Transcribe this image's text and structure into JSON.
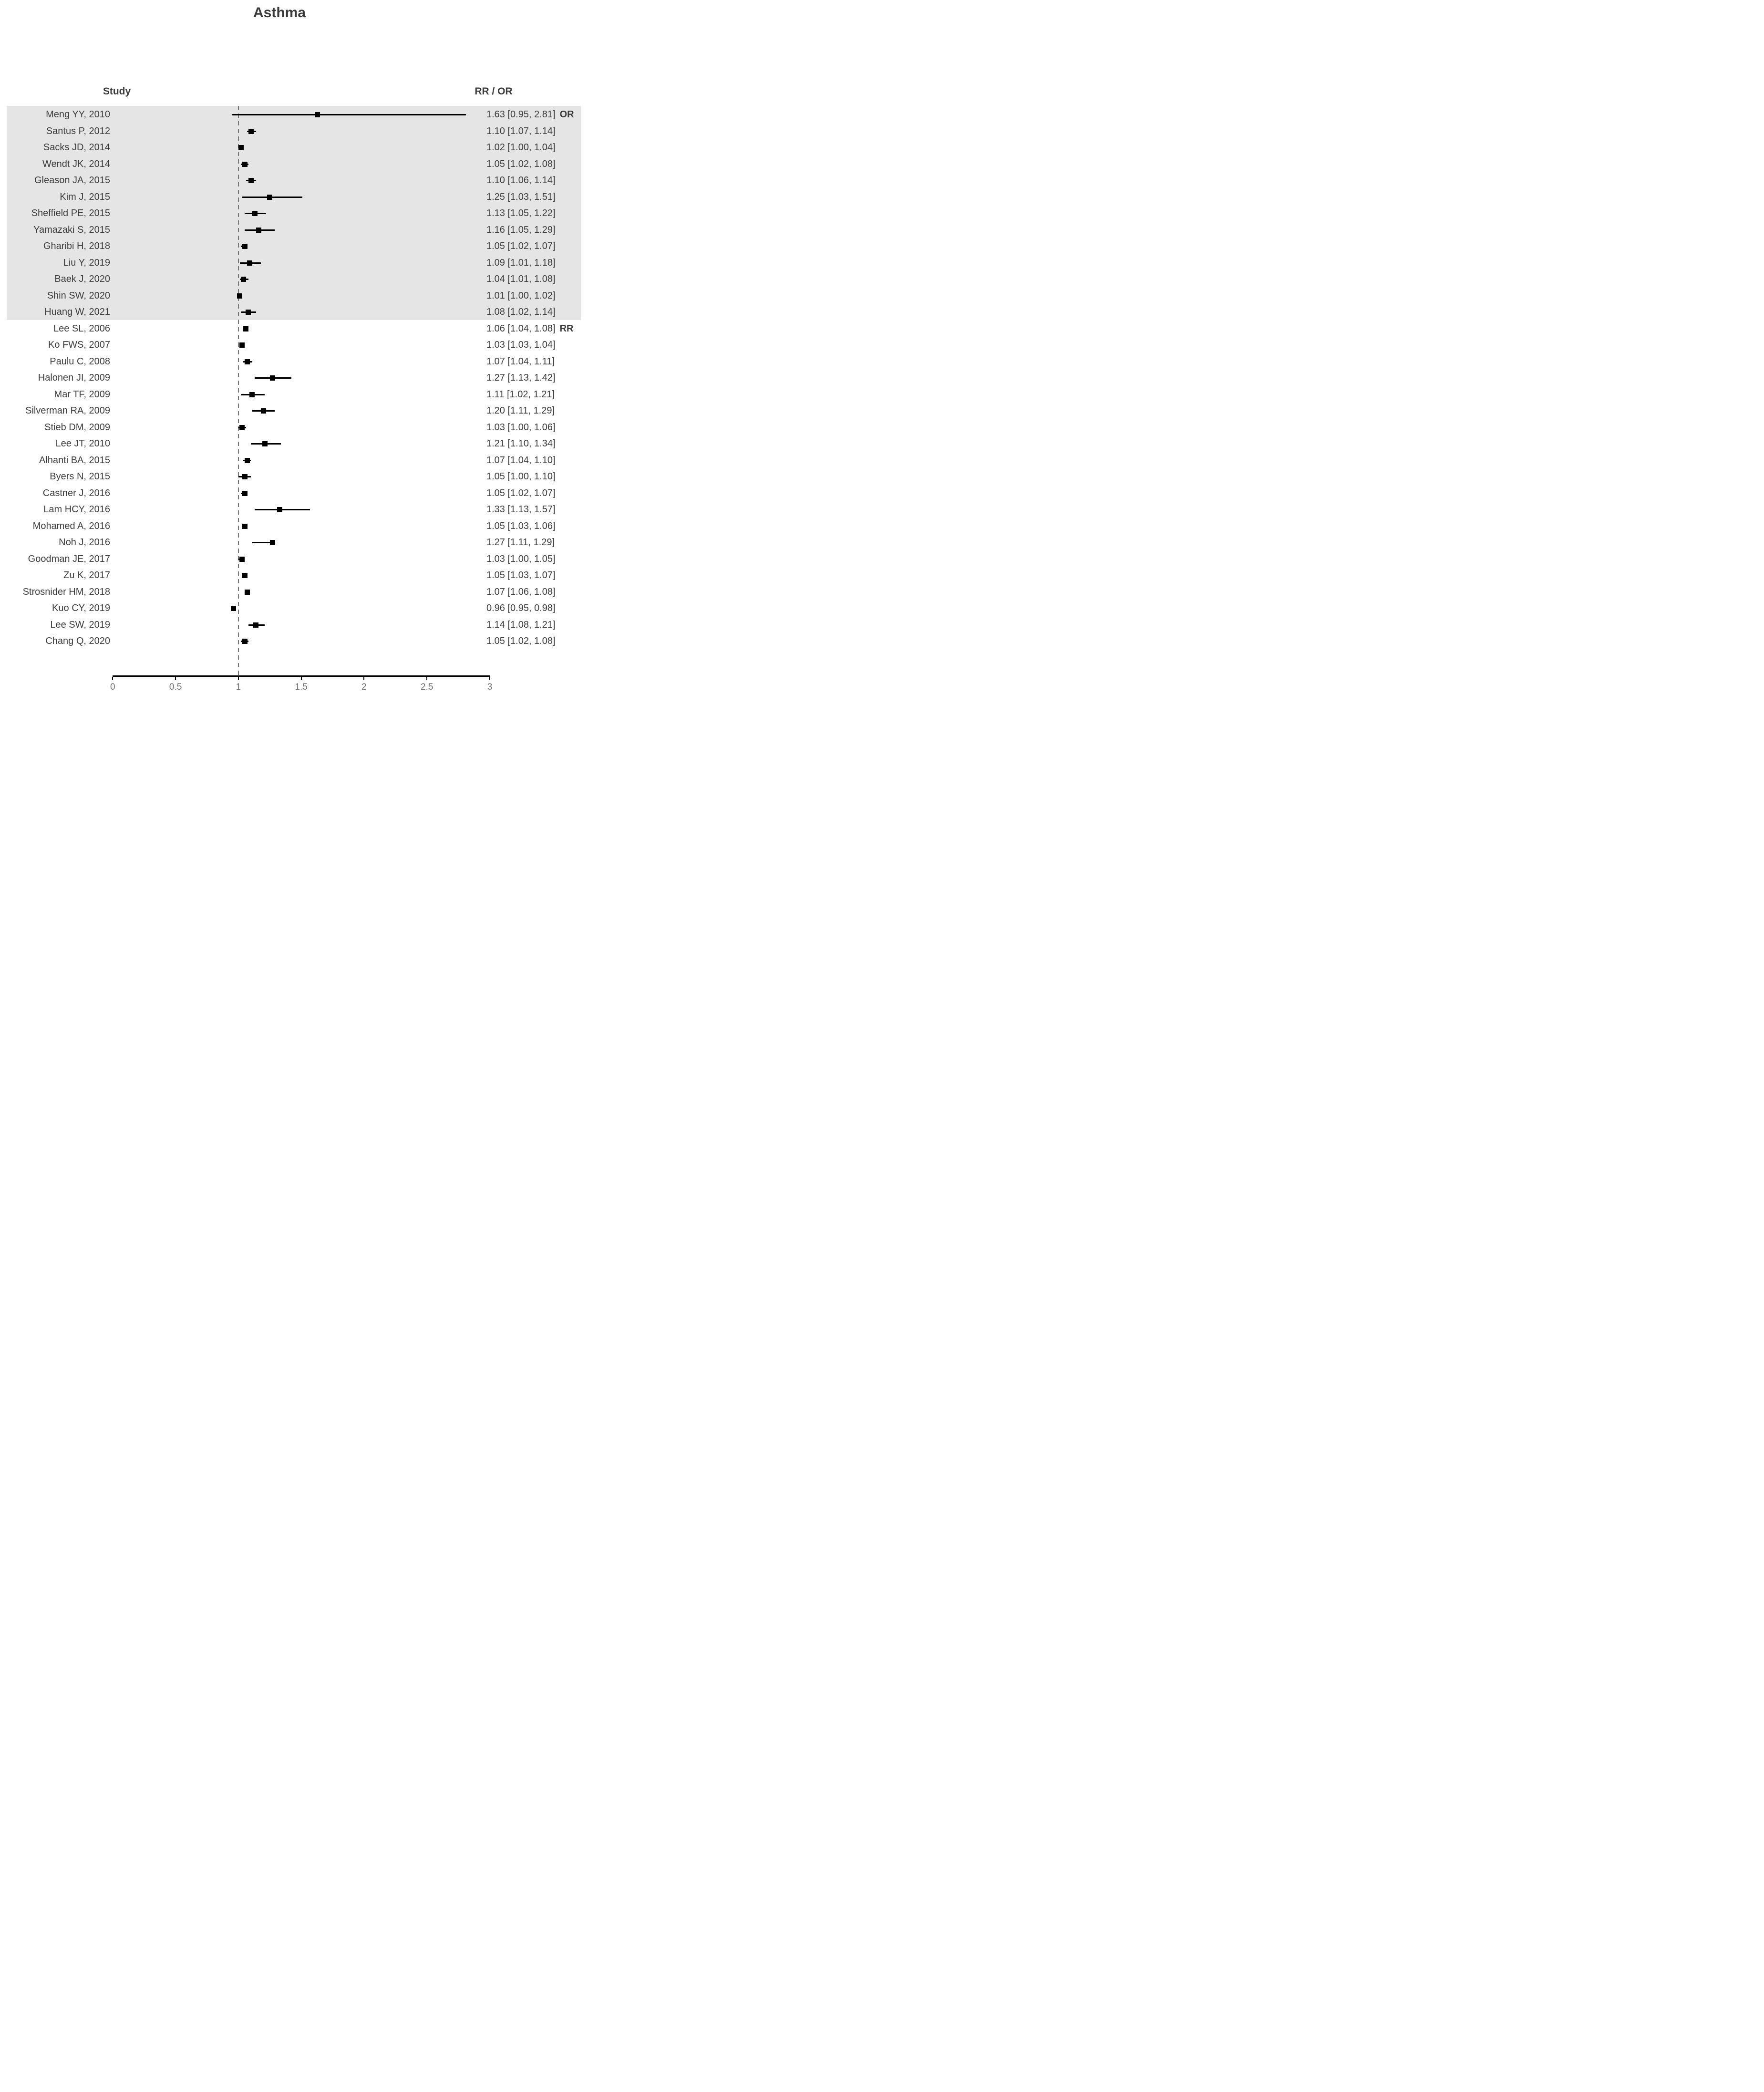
{
  "title": "Asthma",
  "headers": {
    "study": "Study",
    "effect": "RR / OR"
  },
  "axis": {
    "tick_labels": [
      "0",
      "0.5",
      "1",
      "1.5",
      "2",
      "2.5",
      "3"
    ],
    "tick_values": [
      0,
      0.5,
      1,
      1.5,
      2,
      2.5,
      3
    ],
    "min": 0,
    "max": 3,
    "reference_value": 1
  },
  "colors": {
    "group_band": "#e5e5e5",
    "marker": "#000000",
    "text": "#3b3b3b",
    "axis": "#000000",
    "reference_line": "#767676",
    "tick_label": "#6f6f6f"
  },
  "chart_data": {
    "type": "scatter",
    "variant": "forest-plot",
    "title": "Asthma",
    "xlabel": "",
    "ylabel": "",
    "xlim": [
      0,
      3
    ],
    "x_ticks": [
      0,
      0.5,
      1,
      1.5,
      2,
      2.5,
      3
    ],
    "reference_x": 1,
    "grid": false,
    "groups": [
      {
        "name": "OR",
        "row_count": 13,
        "shaded": true
      },
      {
        "name": "RR",
        "row_count": 20,
        "shaded": false
      }
    ],
    "rows": [
      {
        "study": "Meng YY, 2010",
        "estimate": 1.63,
        "ci_low": 0.95,
        "ci_high": 2.81,
        "display": "1.63 [0.95, 2.81]",
        "tag": "OR"
      },
      {
        "study": "Santus P, 2012",
        "estimate": 1.1,
        "ci_low": 1.07,
        "ci_high": 1.14,
        "display": "1.10 [1.07, 1.14]",
        "tag": ""
      },
      {
        "study": "Sacks JD, 2014",
        "estimate": 1.02,
        "ci_low": 1.0,
        "ci_high": 1.04,
        "display": "1.02 [1.00, 1.04]",
        "tag": ""
      },
      {
        "study": "Wendt JK, 2014",
        "estimate": 1.05,
        "ci_low": 1.02,
        "ci_high": 1.08,
        "display": "1.05 [1.02, 1.08]",
        "tag": ""
      },
      {
        "study": "Gleason JA, 2015",
        "estimate": 1.1,
        "ci_low": 1.06,
        "ci_high": 1.14,
        "display": "1.10 [1.06, 1.14]",
        "tag": ""
      },
      {
        "study": "Kim J, 2015",
        "estimate": 1.25,
        "ci_low": 1.03,
        "ci_high": 1.51,
        "display": "1.25 [1.03, 1.51]",
        "tag": ""
      },
      {
        "study": "Sheffield PE, 2015",
        "estimate": 1.13,
        "ci_low": 1.05,
        "ci_high": 1.22,
        "display": "1.13 [1.05, 1.22]",
        "tag": ""
      },
      {
        "study": "Yamazaki S, 2015",
        "estimate": 1.16,
        "ci_low": 1.05,
        "ci_high": 1.29,
        "display": "1.16 [1.05, 1.29]",
        "tag": ""
      },
      {
        "study": "Gharibi H, 2018",
        "estimate": 1.05,
        "ci_low": 1.02,
        "ci_high": 1.07,
        "display": "1.05 [1.02, 1.07]",
        "tag": ""
      },
      {
        "study": "Liu Y, 2019",
        "estimate": 1.09,
        "ci_low": 1.01,
        "ci_high": 1.18,
        "display": "1.09 [1.01, 1.18]",
        "tag": ""
      },
      {
        "study": "Baek J, 2020",
        "estimate": 1.04,
        "ci_low": 1.01,
        "ci_high": 1.08,
        "display": "1.04 [1.01, 1.08]",
        "tag": ""
      },
      {
        "study": "Shin SW, 2020",
        "estimate": 1.01,
        "ci_low": 1.0,
        "ci_high": 1.02,
        "display": "1.01 [1.00, 1.02]",
        "tag": ""
      },
      {
        "study": "Huang W, 2021",
        "estimate": 1.08,
        "ci_low": 1.02,
        "ci_high": 1.14,
        "display": "1.08 [1.02, 1.14]",
        "tag": ""
      },
      {
        "study": "Lee SL, 2006",
        "estimate": 1.06,
        "ci_low": 1.04,
        "ci_high": 1.08,
        "display": "1.06 [1.04, 1.08]",
        "tag": "RR"
      },
      {
        "study": "Ko FWS, 2007",
        "estimate": 1.03,
        "ci_low": 1.03,
        "ci_high": 1.04,
        "display": "1.03 [1.03, 1.04]",
        "tag": ""
      },
      {
        "study": "Paulu C, 2008",
        "estimate": 1.07,
        "ci_low": 1.04,
        "ci_high": 1.11,
        "display": "1.07 [1.04, 1.11]",
        "tag": ""
      },
      {
        "study": "Halonen JI, 2009",
        "estimate": 1.27,
        "ci_low": 1.13,
        "ci_high": 1.42,
        "display": "1.27 [1.13, 1.42]",
        "tag": ""
      },
      {
        "study": "Mar TF, 2009",
        "estimate": 1.11,
        "ci_low": 1.02,
        "ci_high": 1.21,
        "display": "1.11 [1.02, 1.21]",
        "tag": ""
      },
      {
        "study": "Silverman RA, 2009",
        "estimate": 1.2,
        "ci_low": 1.11,
        "ci_high": 1.29,
        "display": "1.20 [1.11, 1.29]",
        "tag": ""
      },
      {
        "study": "Stieb DM, 2009",
        "estimate": 1.03,
        "ci_low": 1.0,
        "ci_high": 1.06,
        "display": "1.03 [1.00, 1.06]",
        "tag": ""
      },
      {
        "study": "Lee JT, 2010",
        "estimate": 1.21,
        "ci_low": 1.1,
        "ci_high": 1.34,
        "display": "1.21 [1.10, 1.34]",
        "tag": ""
      },
      {
        "study": "Alhanti BA, 2015",
        "estimate": 1.07,
        "ci_low": 1.04,
        "ci_high": 1.1,
        "display": "1.07 [1.04, 1.10]",
        "tag": ""
      },
      {
        "study": "Byers N, 2015",
        "estimate": 1.05,
        "ci_low": 1.0,
        "ci_high": 1.1,
        "display": "1.05 [1.00, 1.10]",
        "tag": ""
      },
      {
        "study": "Castner J, 2016",
        "estimate": 1.05,
        "ci_low": 1.02,
        "ci_high": 1.07,
        "display": "1.05 [1.02, 1.07]",
        "tag": ""
      },
      {
        "study": "Lam HCY, 2016",
        "estimate": 1.33,
        "ci_low": 1.13,
        "ci_high": 1.57,
        "display": "1.33 [1.13, 1.57]",
        "tag": ""
      },
      {
        "study": "Mohamed A, 2016",
        "estimate": 1.05,
        "ci_low": 1.03,
        "ci_high": 1.06,
        "display": "1.05 [1.03, 1.06]",
        "tag": ""
      },
      {
        "study": "Noh J, 2016",
        "estimate": 1.27,
        "ci_low": 1.11,
        "ci_high": 1.29,
        "display": "1.27 [1.11, 1.29]",
        "tag": ""
      },
      {
        "study": "Goodman JE, 2017",
        "estimate": 1.03,
        "ci_low": 1.0,
        "ci_high": 1.05,
        "display": "1.03 [1.00, 1.05]",
        "tag": ""
      },
      {
        "study": "Zu K, 2017",
        "estimate": 1.05,
        "ci_low": 1.03,
        "ci_high": 1.07,
        "display": "1.05 [1.03, 1.07]",
        "tag": ""
      },
      {
        "study": "Strosnider HM, 2018",
        "estimate": 1.07,
        "ci_low": 1.06,
        "ci_high": 1.08,
        "display": "1.07 [1.06, 1.08]",
        "tag": ""
      },
      {
        "study": "Kuo CY, 2019",
        "estimate": 0.96,
        "ci_low": 0.95,
        "ci_high": 0.98,
        "display": "0.96 [0.95, 0.98]",
        "tag": ""
      },
      {
        "study": "Lee SW, 2019",
        "estimate": 1.14,
        "ci_low": 1.08,
        "ci_high": 1.21,
        "display": "1.14 [1.08, 1.21]",
        "tag": ""
      },
      {
        "study": "Chang Q, 2020",
        "estimate": 1.05,
        "ci_low": 1.02,
        "ci_high": 1.08,
        "display": "1.05 [1.02, 1.08]",
        "tag": ""
      }
    ]
  }
}
